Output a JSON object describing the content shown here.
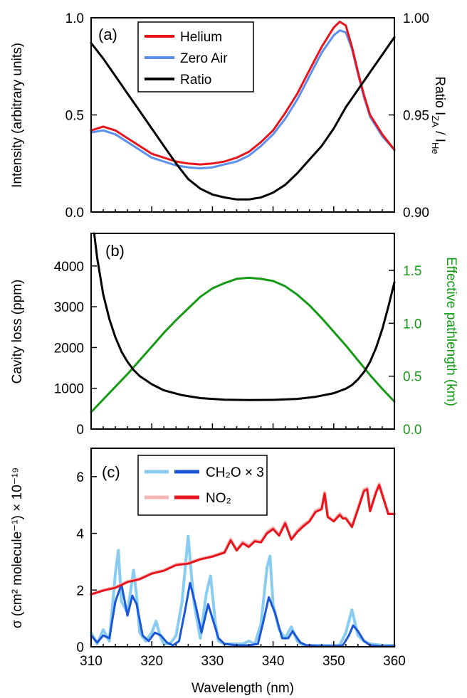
{
  "chart_data": [
    {
      "panel": "(a)",
      "type": "line",
      "ylabel": "Intensity (arbitrary units)",
      "y2label": "Ratio I_ZA / I_He",
      "xlim": [
        310,
        360
      ],
      "ylim": [
        0,
        1
      ],
      "y2lim": [
        0.9,
        1.0
      ],
      "yticks": [
        "0.0",
        "0.5",
        "1.0"
      ],
      "y2ticks": [
        "0.90",
        "0.95",
        "1.00"
      ],
      "legend": "top-left",
      "colors": {
        "helium": "#e8141c",
        "zero_air": "#5b8ff0",
        "ratio": "#000000"
      },
      "series": [
        {
          "name": "Helium",
          "axis": "left",
          "x": [
            310,
            312,
            314,
            316,
            318,
            320,
            322,
            324,
            326,
            328,
            330,
            332,
            334,
            336,
            338,
            340,
            342,
            344,
            346,
            348,
            350,
            351,
            352,
            353,
            354,
            355,
            356,
            358,
            360
          ],
          "y": [
            0.42,
            0.44,
            0.42,
            0.38,
            0.34,
            0.3,
            0.28,
            0.26,
            0.25,
            0.245,
            0.25,
            0.26,
            0.28,
            0.31,
            0.36,
            0.42,
            0.51,
            0.61,
            0.73,
            0.85,
            0.95,
            0.98,
            0.96,
            0.85,
            0.72,
            0.6,
            0.5,
            0.4,
            0.32
          ]
        },
        {
          "name": "Zero Air",
          "axis": "left",
          "x": [
            310,
            312,
            314,
            316,
            318,
            320,
            322,
            324,
            326,
            328,
            330,
            332,
            334,
            336,
            338,
            340,
            342,
            344,
            346,
            348,
            350,
            351,
            352,
            353,
            354,
            355,
            356,
            358,
            360
          ],
          "y": [
            0.41,
            0.42,
            0.4,
            0.36,
            0.32,
            0.28,
            0.26,
            0.24,
            0.23,
            0.225,
            0.23,
            0.245,
            0.26,
            0.29,
            0.34,
            0.4,
            0.48,
            0.58,
            0.7,
            0.82,
            0.91,
            0.935,
            0.925,
            0.84,
            0.71,
            0.59,
            0.49,
            0.39,
            0.32
          ]
        },
        {
          "name": "Ratio",
          "axis": "right",
          "x": [
            310,
            312,
            314,
            316,
            318,
            320,
            322,
            324,
            326,
            328,
            330,
            332,
            334,
            336,
            338,
            340,
            342,
            344,
            346,
            348,
            350,
            352,
            354,
            356,
            358,
            360
          ],
          "y": [
            0.987,
            0.979,
            0.97,
            0.961,
            0.952,
            0.943,
            0.934,
            0.925,
            0.917,
            0.912,
            0.909,
            0.9075,
            0.9065,
            0.9065,
            0.9075,
            0.91,
            0.914,
            0.92,
            0.927,
            0.934,
            0.943,
            0.954,
            0.963,
            0.972,
            0.981,
            0.99
          ]
        }
      ]
    },
    {
      "panel": "(b)",
      "type": "line",
      "ylabel": "Cavity loss (ppm)",
      "y2label": "Effective pathlength (km)",
      "xlim": [
        310,
        360
      ],
      "ylim": [
        0,
        4800
      ],
      "y2lim": [
        0,
        1.85
      ],
      "yticks": [
        "0",
        "1000",
        "2000",
        "3000",
        "4000"
      ],
      "y2ticks": [
        "0.0",
        "0.5",
        "1.0",
        "1.5"
      ],
      "colors": {
        "cavity_loss": "#000000",
        "pathlength": "#159a15"
      },
      "series": [
        {
          "axis": "left",
          "x": [
            310.5,
            311,
            312,
            313,
            314,
            315,
            316,
            317,
            318,
            320,
            322,
            325,
            328,
            332,
            336,
            340,
            344,
            347,
            350,
            352,
            353,
            354,
            355,
            356,
            357,
            358,
            359,
            360
          ],
          "y": [
            4800,
            4200,
            3300,
            2700,
            2250,
            1900,
            1650,
            1450,
            1300,
            1100,
            950,
            830,
            760,
            720,
            710,
            715,
            740,
            790,
            880,
            990,
            1080,
            1220,
            1400,
            1650,
            2000,
            2450,
            3000,
            3600
          ]
        },
        {
          "axis": "right",
          "x": [
            310,
            312,
            314,
            316,
            318,
            320,
            322,
            324,
            326,
            328,
            330,
            332,
            334,
            336,
            338,
            340,
            342,
            344,
            346,
            348,
            350,
            352,
            354,
            356,
            358,
            360
          ],
          "y": [
            0.16,
            0.28,
            0.4,
            0.52,
            0.65,
            0.78,
            0.91,
            1.03,
            1.14,
            1.25,
            1.33,
            1.38,
            1.42,
            1.43,
            1.42,
            1.4,
            1.35,
            1.27,
            1.17,
            1.05,
            0.92,
            0.79,
            0.65,
            0.51,
            0.38,
            0.26
          ]
        }
      ]
    },
    {
      "panel": "(c)",
      "type": "line",
      "xlabel": "Wavelength (nm)",
      "ylabel": "σ (cm² molecule⁻¹) × 10⁻¹⁹",
      "xlim": [
        310,
        360
      ],
      "ylim": [
        0,
        7
      ],
      "xticks": [
        "310",
        "320",
        "330",
        "340",
        "350",
        "360"
      ],
      "yticks": [
        "0",
        "2",
        "4",
        "6"
      ],
      "legend": "top-left",
      "colors": {
        "ch2o_hires": "#88ccf1",
        "ch2o": "#1a56d6",
        "no2_hires": "#f5b5b5",
        "no2": "#e8141c"
      },
      "series": [
        {
          "name": "CH₂O × 3",
          "style": "high-resolution",
          "x": [
            310,
            311,
            312,
            313,
            314,
            314.5,
            315,
            316,
            317,
            317.5,
            318,
            319,
            320,
            320.7,
            321.5,
            322,
            323,
            324,
            325,
            326,
            326.5,
            327,
            328,
            329,
            329.7,
            330.5,
            331,
            332,
            333,
            334,
            335,
            336,
            337,
            338,
            339,
            339.5,
            340,
            341,
            342,
            343,
            344,
            345,
            346,
            348,
            350,
            351,
            352,
            353,
            354,
            355,
            356,
            358,
            360
          ],
          "y": [
            0.5,
            0.1,
            0.6,
            0.2,
            2.6,
            3.4,
            1.6,
            1.2,
            2.7,
            1.8,
            0.5,
            0.2,
            0.5,
            0.9,
            0.3,
            0.1,
            0.1,
            0.4,
            1.6,
            3.9,
            2.6,
            1.5,
            0.3,
            1.9,
            2.5,
            0.8,
            0.2,
            0.1,
            0.1,
            0.1,
            0.1,
            0.2,
            0.1,
            0.8,
            2.8,
            3.2,
            1.5,
            0.6,
            0.3,
            0.7,
            0.2,
            0.05,
            0.05,
            0.05,
            0.05,
            0.05,
            0.5,
            1.3,
            0.4,
            0.2,
            0.1,
            0.05,
            0.05
          ]
        },
        {
          "name": "CH₂O × 3",
          "style": "smoothed",
          "x": [
            310,
            311,
            312,
            313,
            314,
            315,
            316,
            316.8,
            317.5,
            318.5,
            319.5,
            320.5,
            321.5,
            322.5,
            323.5,
            324.5,
            325.5,
            326.3,
            327.2,
            328.2,
            329.3,
            330,
            331,
            332,
            334,
            336,
            337.5,
            338.3,
            339.3,
            340.3,
            341.5,
            342.5,
            343.2,
            344.5,
            345.5,
            348,
            350,
            351.5,
            352.5,
            353.2,
            354,
            355,
            356,
            358,
            360
          ],
          "y": [
            0.4,
            0.15,
            0.4,
            0.3,
            1.6,
            2.2,
            1.1,
            1.8,
            1.5,
            0.4,
            0.2,
            0.5,
            0.4,
            0.15,
            0.05,
            0.2,
            1.3,
            2.25,
            1.5,
            0.5,
            1.5,
            1.0,
            0.3,
            0.1,
            0.05,
            0.05,
            0.1,
            0.8,
            1.75,
            1.2,
            0.3,
            0.3,
            0.55,
            0.15,
            0.05,
            0.02,
            0.02,
            0.05,
            0.4,
            0.75,
            0.55,
            0.2,
            0.05,
            0.02,
            0.02
          ]
        },
        {
          "name": "NO₂",
          "style": "high-resolution",
          "x": [
            310,
            312,
            314,
            316,
            318,
            320,
            322,
            324,
            326,
            328,
            330,
            332,
            333,
            334,
            335,
            336,
            337,
            338,
            339,
            340,
            341,
            342,
            343,
            344,
            345,
            346,
            347,
            348,
            348.5,
            349,
            350,
            351,
            351.5,
            352,
            353,
            354,
            355,
            355.5,
            356,
            357,
            357.5,
            358,
            359,
            360
          ],
          "y": [
            1.85,
            2.0,
            2.1,
            2.3,
            2.4,
            2.6,
            2.7,
            2.9,
            2.95,
            3.1,
            3.2,
            3.35,
            3.8,
            3.4,
            3.7,
            3.55,
            3.75,
            3.7,
            4.05,
            4.2,
            3.95,
            4.4,
            3.8,
            4.1,
            4.3,
            4.45,
            4.8,
            4.9,
            5.45,
            4.6,
            4.45,
            4.7,
            4.55,
            4.55,
            4.25,
            4.9,
            5.55,
            5.6,
            4.8,
            5.5,
            5.75,
            5.4,
            4.7,
            4.7
          ]
        },
        {
          "name": "NO₂",
          "style": "smoothed",
          "x": [
            310,
            312,
            314,
            316,
            318,
            320,
            322,
            324,
            326,
            328,
            330,
            332,
            333,
            334,
            335,
            336,
            337,
            338,
            339,
            340,
            341,
            342,
            343,
            344,
            345,
            346,
            347,
            348,
            348.5,
            349,
            350,
            351,
            351.5,
            352,
            353,
            354,
            355,
            355.5,
            356,
            357,
            357.5,
            358,
            359,
            360
          ],
          "y": [
            1.85,
            1.98,
            2.08,
            2.28,
            2.38,
            2.58,
            2.68,
            2.88,
            2.93,
            3.08,
            3.18,
            3.32,
            3.75,
            3.4,
            3.65,
            3.52,
            3.72,
            3.68,
            4.0,
            4.15,
            3.92,
            4.35,
            3.78,
            4.05,
            4.25,
            4.42,
            4.75,
            4.85,
            5.4,
            4.58,
            4.42,
            4.65,
            4.52,
            4.52,
            4.22,
            4.85,
            5.5,
            5.55,
            4.78,
            5.45,
            5.7,
            5.35,
            4.68,
            4.68
          ]
        }
      ]
    }
  ],
  "labels": {
    "a_letter": "(a)",
    "b_letter": "(b)",
    "c_letter": "(c)",
    "leg_helium": "Helium",
    "leg_zero_air": "Zero Air",
    "leg_ratio": "Ratio",
    "leg_ch2o": "CH₂O × 3",
    "leg_no2": "NO₂",
    "a_ylabel": "Intensity (arbitrary units)",
    "a_y2label": "Ratio I_ZA / I_He",
    "b_ylabel": "Cavity loss (ppm)",
    "b_y2label": "Effective pathlength (km)",
    "c_ylabel": "σ (cm² molecule⁻¹) × 10⁻¹⁹",
    "c_xlabel": "Wavelength (nm)"
  }
}
